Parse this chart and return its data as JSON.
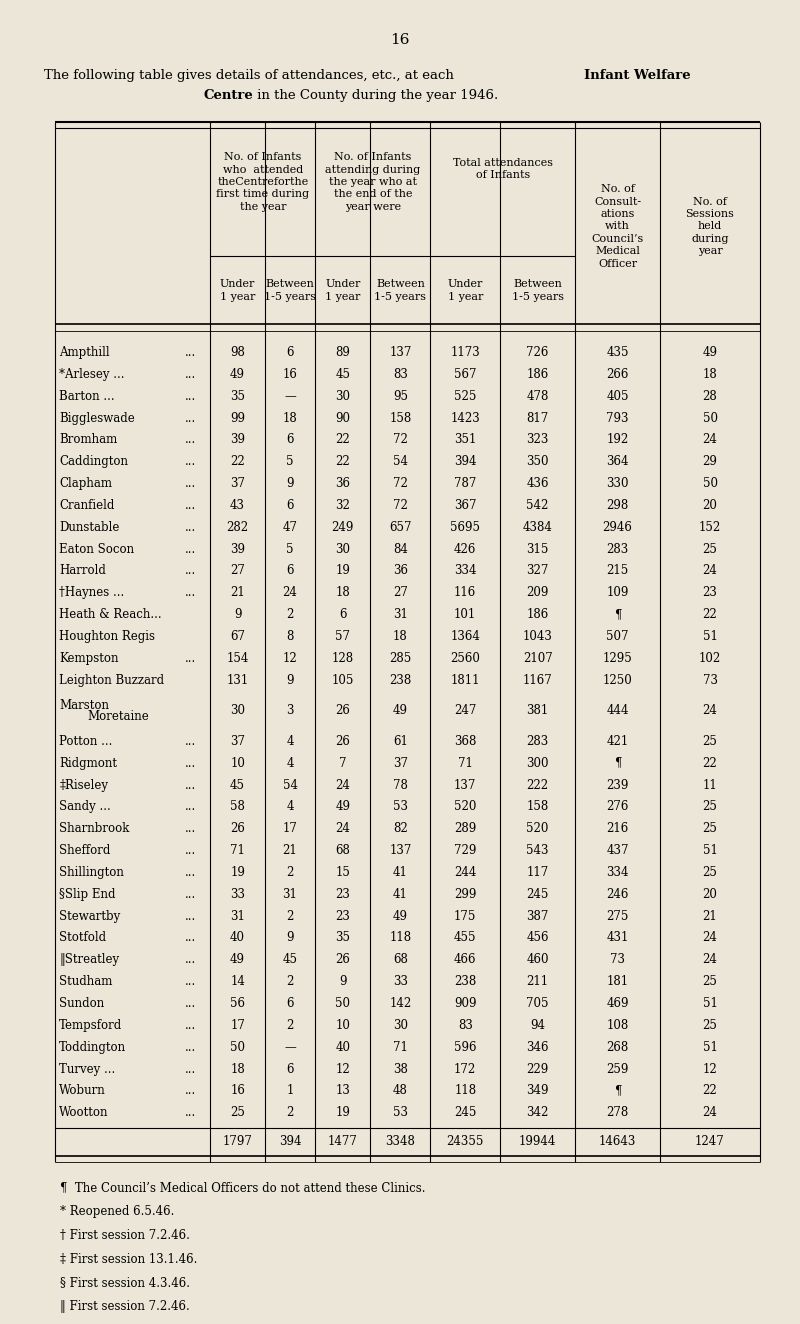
{
  "page_number": "16",
  "bg_color": "#ece6d8",
  "title1_normal": "The following table gives details of attendances, etc., at each ",
  "title1_bold": "Infant Welfare",
  "title2_bold": "Centre",
  "title2_normal": " in the County during the year 1946.",
  "rows": [
    [
      "Ampthill",
      "...",
      "98",
      "6",
      "89",
      "137",
      "1173",
      "726",
      "435",
      "49"
    ],
    [
      "*Arlesey ...",
      "...",
      "49",
      "16",
      "45",
      "83",
      "567",
      "186",
      "266",
      "18"
    ],
    [
      "Barton ...",
      "...",
      "35",
      "—",
      "30",
      "95",
      "525",
      "478",
      "405",
      "28"
    ],
    [
      "Biggleswade",
      "...",
      "99",
      "18",
      "90",
      "158",
      "1423",
      "817",
      "793",
      "50"
    ],
    [
      "Bromham",
      "...",
      "39",
      "6",
      "22",
      "72",
      "351",
      "323",
      "192",
      "24"
    ],
    [
      "Caddington",
      "...",
      "22",
      "5",
      "22",
      "54",
      "394",
      "350",
      "364",
      "29"
    ],
    [
      "Clapham",
      "...",
      "37",
      "9",
      "36",
      "72",
      "787",
      "436",
      "330",
      "50"
    ],
    [
      "Cranfield",
      "...",
      "43",
      "6",
      "32",
      "72",
      "367",
      "542",
      "298",
      "20"
    ],
    [
      "Dunstable",
      "...",
      "282",
      "47",
      "249",
      "657",
      "5695",
      "4384",
      "2946",
      "152"
    ],
    [
      "Eaton Socon",
      "...",
      "39",
      "5",
      "30",
      "84",
      "426",
      "315",
      "283",
      "25"
    ],
    [
      "Harrold",
      "...",
      "27",
      "6",
      "19",
      "36",
      "334",
      "327",
      "215",
      "24"
    ],
    [
      "†Haynes ...",
      "...",
      "21",
      "24",
      "18",
      "27",
      "116",
      "209",
      "109",
      "23"
    ],
    [
      "Heath & Reach...",
      "",
      "9",
      "2",
      "6",
      "31",
      "101",
      "186",
      "¶",
      "22"
    ],
    [
      "Houghton Regis",
      "",
      "67",
      "8",
      "57",
      "18",
      "1364",
      "1043",
      "507",
      "51"
    ],
    [
      "Kempston",
      "...",
      "154",
      "12",
      "128",
      "285",
      "2560",
      "2107",
      "1295",
      "102"
    ],
    [
      "Leighton Buzzard",
      "",
      "131",
      "9",
      "105",
      "238",
      "1811",
      "1167",
      "1250",
      "73"
    ],
    [
      "Marston\nMoretaine",
      "",
      "30",
      "3",
      "26",
      "49",
      "247",
      "381",
      "444",
      "24"
    ],
    [
      "Potton ...",
      "...",
      "37",
      "4",
      "26",
      "61",
      "368",
      "283",
      "421",
      "25"
    ],
    [
      "Ridgmont",
      "...",
      "10",
      "4",
      "7",
      "37",
      "71",
      "300",
      "¶",
      "22"
    ],
    [
      "‡Riseley",
      "...",
      "45",
      "54",
      "24",
      "78",
      "137",
      "222",
      "239",
      "11"
    ],
    [
      "Sandy ...",
      "...",
      "58",
      "4",
      "49",
      "53",
      "520",
      "158",
      "276",
      "25"
    ],
    [
      "Sharnbrook",
      "...",
      "26",
      "17",
      "24",
      "82",
      "289",
      "520",
      "216",
      "25"
    ],
    [
      "Shefford",
      "...",
      "71",
      "21",
      "68",
      "137",
      "729",
      "543",
      "437",
      "51"
    ],
    [
      "Shillington",
      "...",
      "19",
      "2",
      "15",
      "41",
      "244",
      "117",
      "334",
      "25"
    ],
    [
      "§Slip End",
      "...",
      "33",
      "31",
      "23",
      "41",
      "299",
      "245",
      "246",
      "20"
    ],
    [
      "Stewartby",
      "...",
      "31",
      "2",
      "23",
      "49",
      "175",
      "387",
      "275",
      "21"
    ],
    [
      "Stotfold",
      "...",
      "40",
      "9",
      "35",
      "118",
      "455",
      "456",
      "431",
      "24"
    ],
    [
      "‖Streatley",
      "...",
      "49",
      "45",
      "26",
      "68",
      "466",
      "460",
      "73",
      "24"
    ],
    [
      "Studham",
      "...",
      "14",
      "2",
      "9",
      "33",
      "238",
      "211",
      "181",
      "25"
    ],
    [
      "Sundon",
      "...",
      "56",
      "6",
      "50",
      "142",
      "909",
      "705",
      "469",
      "51"
    ],
    [
      "Tempsford",
      "...",
      "17",
      "2",
      "10",
      "30",
      "83",
      "94",
      "108",
      "25"
    ],
    [
      "Toddington",
      "...",
      "50",
      "—",
      "40",
      "71",
      "596",
      "346",
      "268",
      "51"
    ],
    [
      "Turvey ...",
      "...",
      "18",
      "6",
      "12",
      "38",
      "172",
      "229",
      "259",
      "12"
    ],
    [
      "Woburn",
      "...",
      "16",
      "1",
      "13",
      "48",
      "118",
      "349",
      "¶",
      "22"
    ],
    [
      "Wootton",
      "...",
      "25",
      "2",
      "19",
      "53",
      "245",
      "342",
      "278",
      "24"
    ]
  ],
  "totals": [
    "1797",
    "394",
    "1477",
    "3348",
    "24355",
    "19944",
    "14643",
    "1247"
  ],
  "footnotes": [
    "¶  The Council’s Medical Officers do not attend these Clinics.",
    "* Reopened 6.5.46.",
    "† First session 7.2.46.",
    "‡ First session 13.1.46.",
    "§ First session 4.3.46.",
    "‖ First session 7.2.46."
  ]
}
